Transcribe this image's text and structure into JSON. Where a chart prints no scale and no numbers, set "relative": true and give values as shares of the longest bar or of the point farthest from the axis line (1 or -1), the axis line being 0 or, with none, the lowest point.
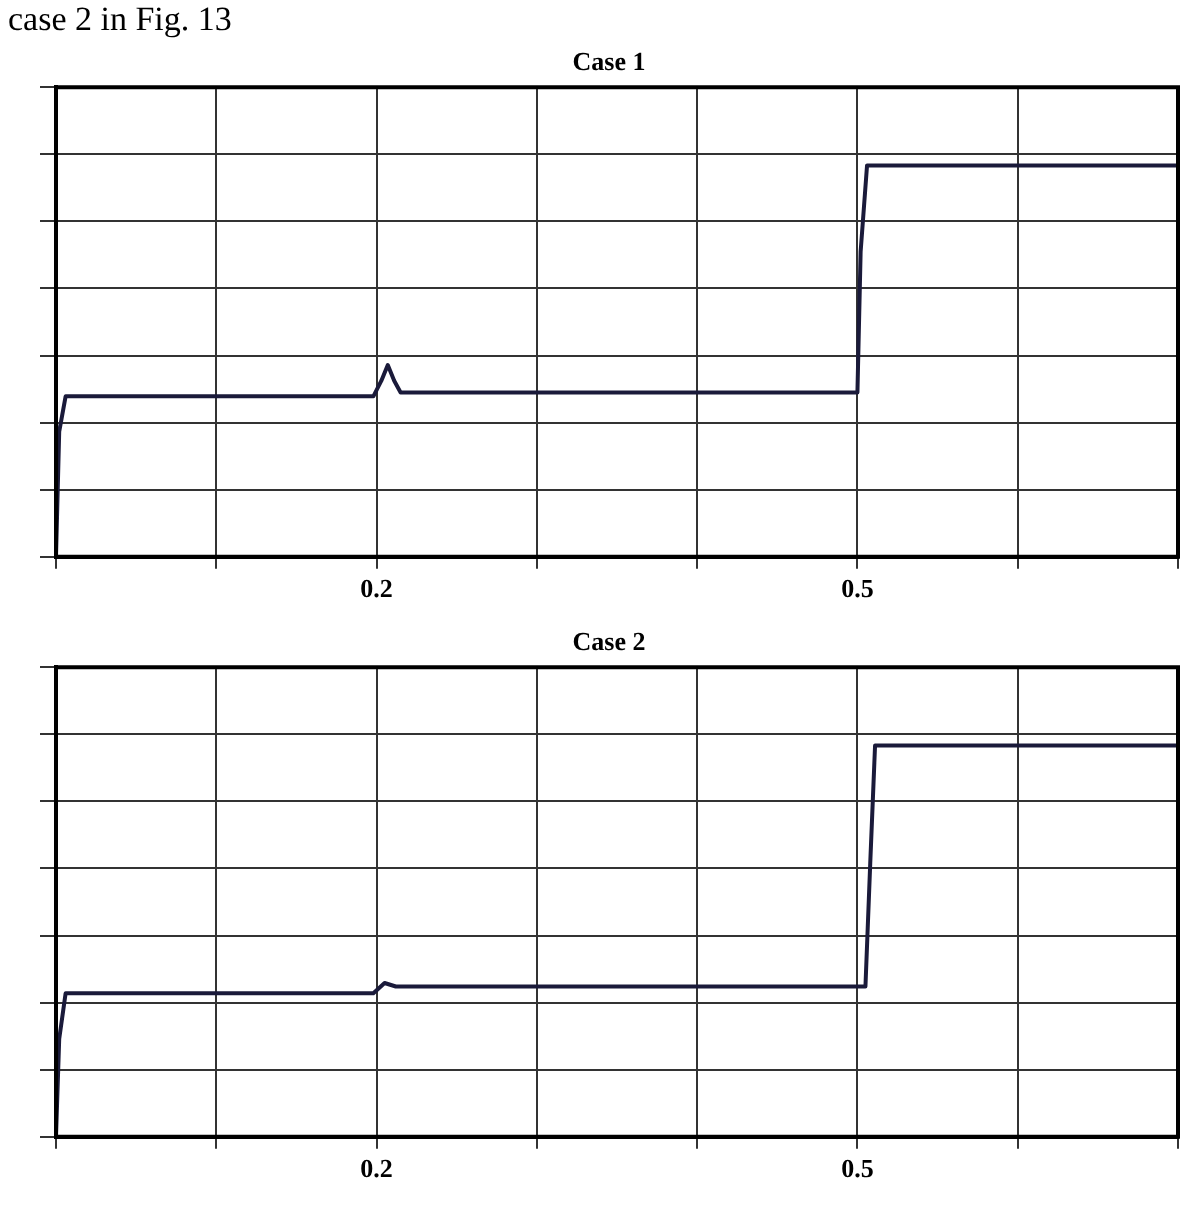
{
  "chart_data": [
    {
      "type": "line",
      "title": "Case 1",
      "annotations": [
        "case 2 in Fig. 13"
      ],
      "relative": true,
      "x": [
        0,
        0.002,
        0.006,
        0.198,
        0.203,
        0.207,
        0.211,
        0.215,
        0.5,
        0.502,
        0.506,
        0.7
      ],
      "series": [
        {
          "color": "#1a1a3a",
          "values": [
            0,
            0.32,
            0.41,
            0.41,
            0.45,
            0.49,
            0.45,
            0.42,
            0.42,
            0.78,
            1,
            1
          ]
        }
      ],
      "xlim": [
        0,
        0.7
      ],
      "xticks": [
        {
          "value": 0,
          "label": null
        },
        {
          "value": 0.1,
          "label": null
        },
        {
          "value": 0.2,
          "label": "0.2"
        },
        {
          "value": 0.3,
          "label": null
        },
        {
          "value": 0.4,
          "label": null
        },
        {
          "value": 0.5,
          "label": "0.5"
        },
        {
          "value": 0.6,
          "label": null
        },
        {
          "value": 0.7,
          "label": null
        }
      ],
      "grid": true,
      "legend": false,
      "tick_labels": "x",
      "marker": "none",
      "line_style": "solid"
    },
    {
      "type": "line",
      "title": "Case 2",
      "relative": true,
      "x": [
        0,
        0.002,
        0.006,
        0.198,
        0.205,
        0.212,
        0.505,
        0.508,
        0.511,
        0.7
      ],
      "series": [
        {
          "color": "#1a1a3a",
          "values": [
            0,
            0.25,
            0.367,
            0.367,
            0.393,
            0.384,
            0.384,
            0.7,
            1,
            1
          ]
        }
      ],
      "xlim": [
        0,
        0.7
      ],
      "xticks": [
        {
          "value": 0,
          "label": null
        },
        {
          "value": 0.1,
          "label": null
        },
        {
          "value": 0.2,
          "label": "0.2"
        },
        {
          "value": 0.3,
          "label": null
        },
        {
          "value": 0.4,
          "label": null
        },
        {
          "value": 0.5,
          "label": "0.5"
        },
        {
          "value": 0.6,
          "label": null
        },
        {
          "value": 0.7,
          "label": null
        }
      ],
      "grid": true,
      "legend": false,
      "tick_labels": "x",
      "marker": "none",
      "line_style": "solid"
    }
  ]
}
